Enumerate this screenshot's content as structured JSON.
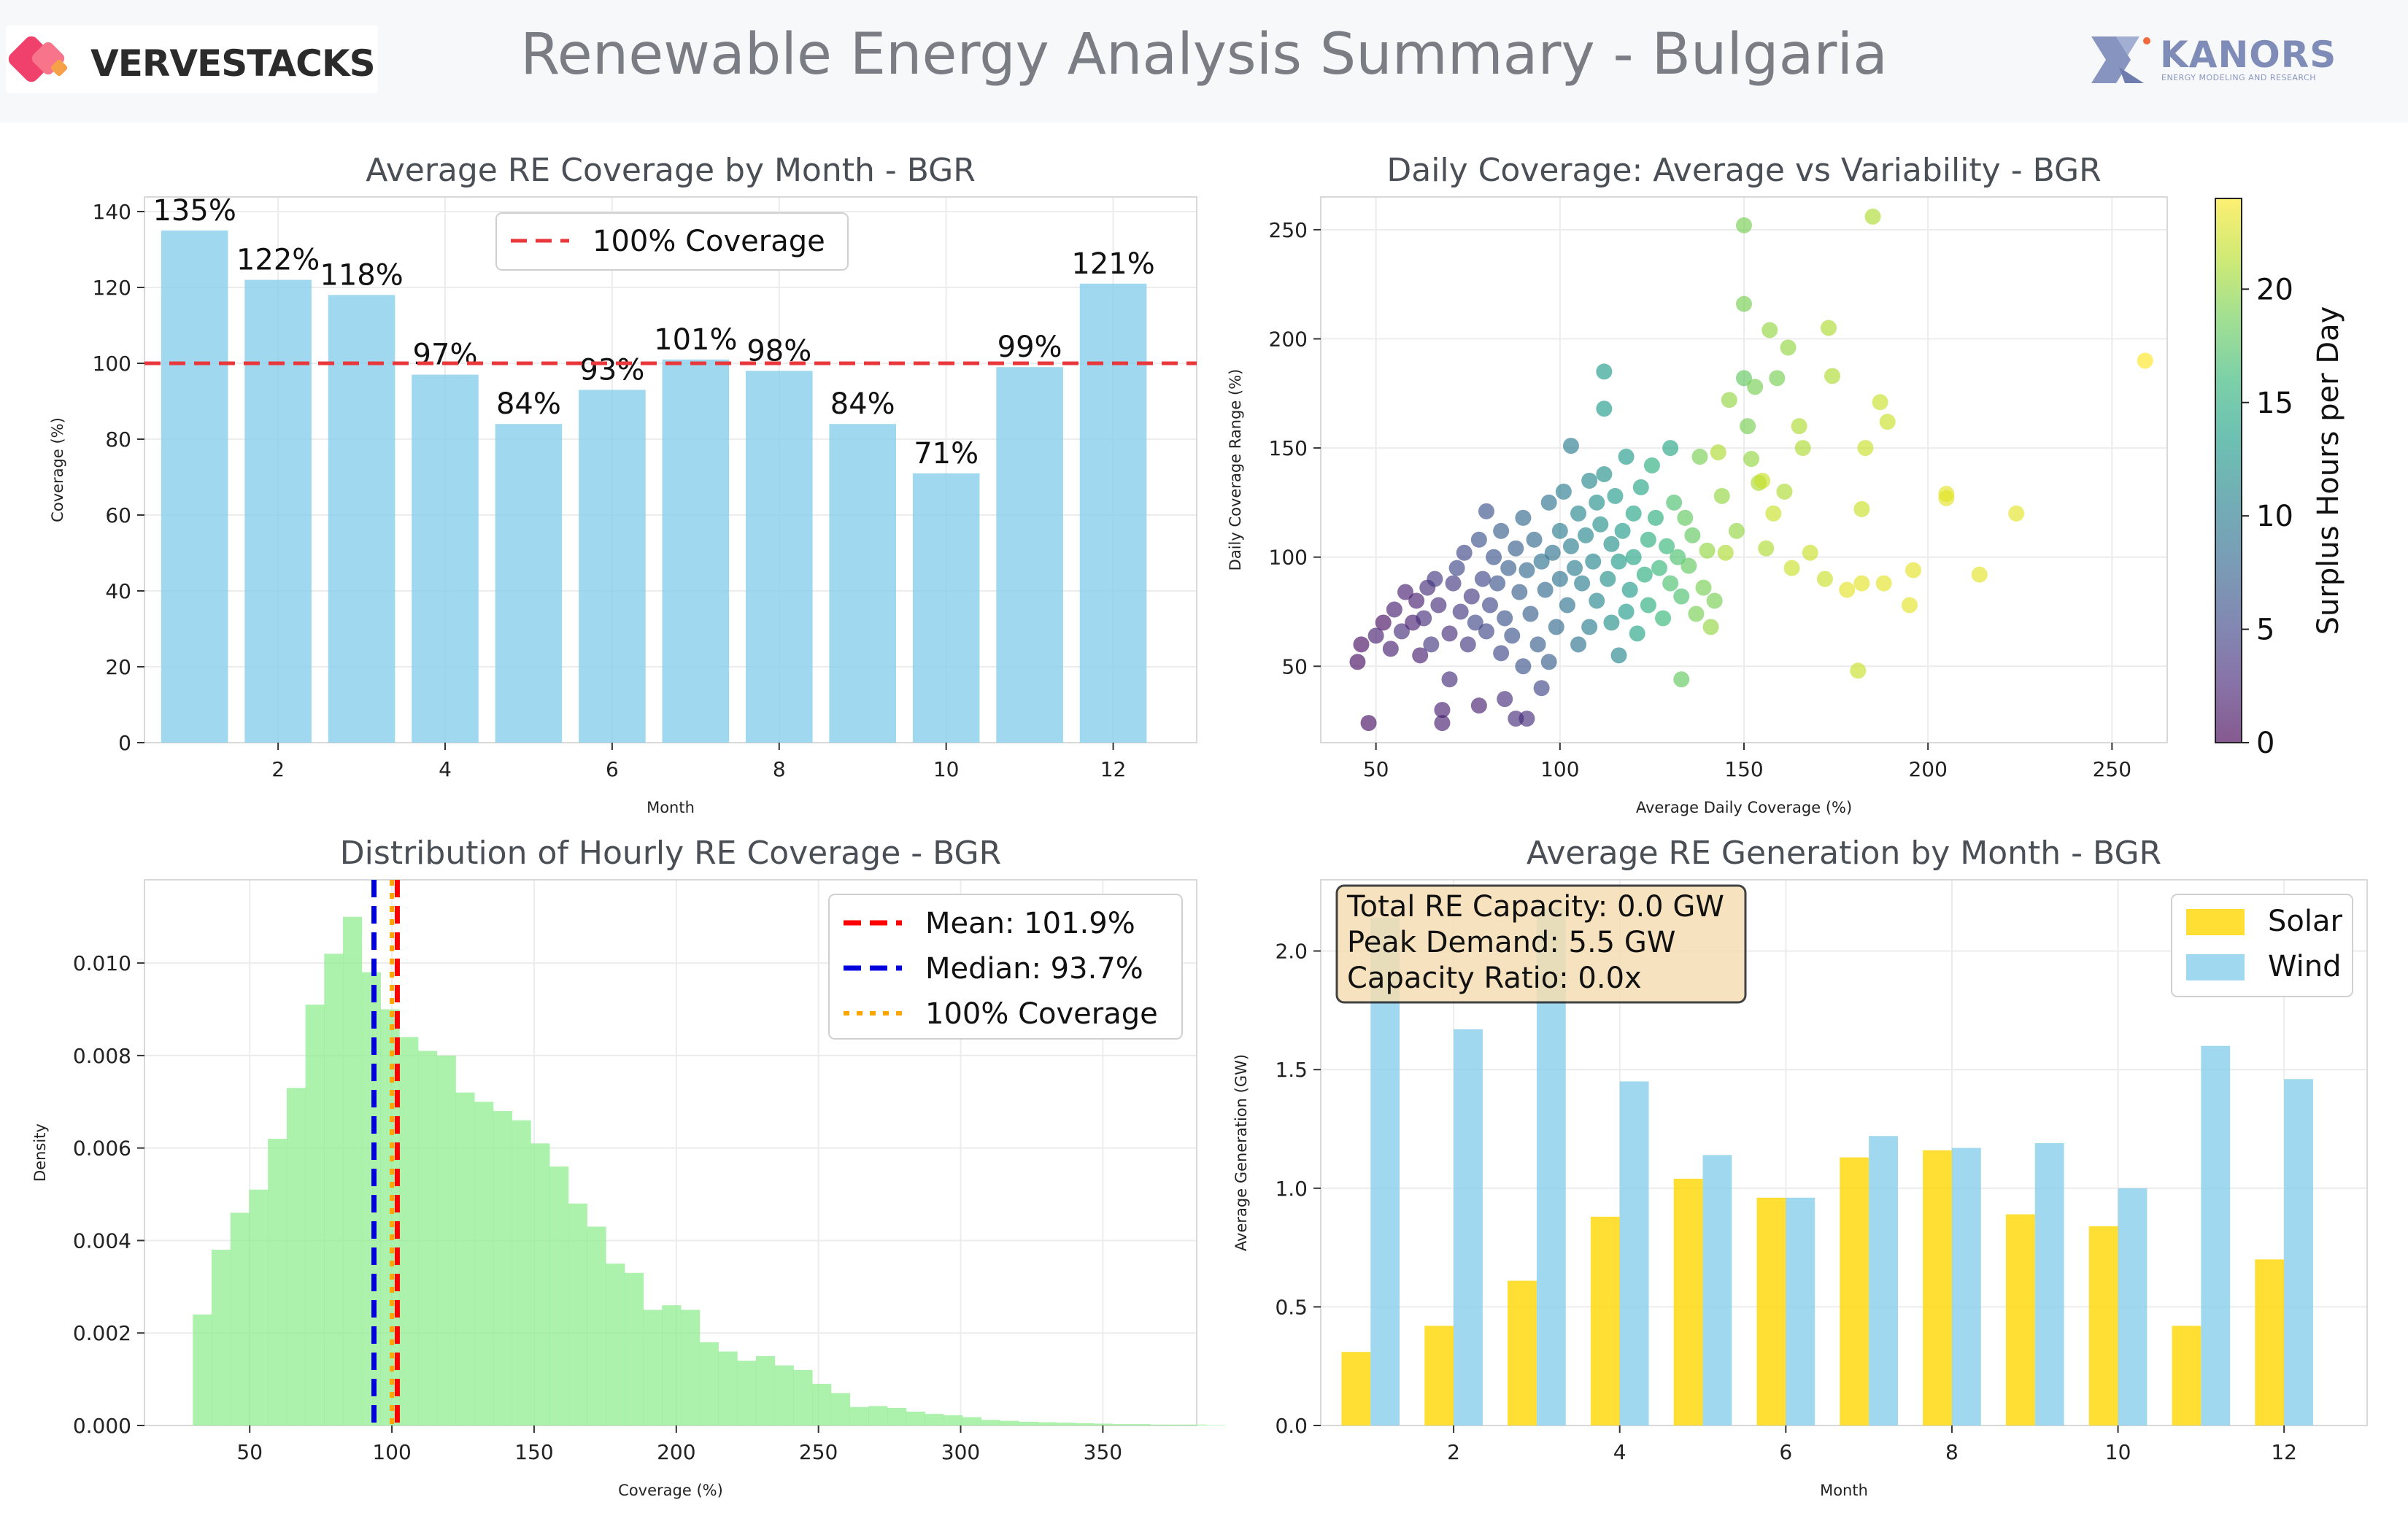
{
  "header": {
    "title": "Renewable Energy Analysis Summary - Bulgaria",
    "logo_left": "VERVESTACKS",
    "logo_right": "KANORS",
    "logo_right_sub": "ENERGY MODELING AND RESEARCH"
  },
  "colors": {
    "bar_blue": "#87ceeb",
    "bar_green": "#90ee90",
    "solar": "#ffd700",
    "wind": "#87ceeb",
    "ref_red": "#e8383b",
    "median_blue": "#0000dd",
    "coverage_orange": "#ffa500",
    "annotation_bg": "#f5deb3"
  },
  "chart_data": [
    {
      "type": "bar",
      "title": "Average RE Coverage by Month - BGR",
      "xlabel": "Month",
      "ylabel": "Coverage (%)",
      "x": [
        1,
        2,
        3,
        4,
        5,
        6,
        7,
        8,
        9,
        10,
        11,
        12
      ],
      "values": [
        135,
        122,
        118,
        97,
        84,
        93,
        101,
        98,
        84,
        71,
        99,
        121
      ],
      "data_labels": [
        "135%",
        "122%",
        "118%",
        "97%",
        "84%",
        "93%",
        "101%",
        "98%",
        "84%",
        "71%",
        "99%",
        "121%"
      ],
      "xticks": [
        "2",
        "4",
        "6",
        "8",
        "10",
        "12"
      ],
      "yticks": [
        "0",
        "20",
        "40",
        "60",
        "80",
        "100",
        "120",
        "140"
      ],
      "ylim": [
        0,
        140
      ],
      "reference_line": {
        "y": 100,
        "label": "100% Coverage"
      },
      "legend": "top-center",
      "grid": true
    },
    {
      "type": "scatter",
      "title": "Daily Coverage: Average vs Variability - BGR",
      "xlabel": "Average Daily Coverage (%)",
      "ylabel": "Daily Coverage Range (%)",
      "xticks": [
        "50",
        "100",
        "150",
        "200",
        "250"
      ],
      "yticks": [
        "50",
        "100",
        "150",
        "200",
        "250"
      ],
      "xlim": [
        35,
        265
      ],
      "ylim": [
        15,
        265
      ],
      "colorbar": {
        "label": "Surplus Hours per Day",
        "range": [
          0,
          24
        ],
        "ticks": [
          "0",
          "5",
          "10",
          "15",
          "20"
        ],
        "colormap": "viridis"
      },
      "points": [
        [
          45,
          52,
          1
        ],
        [
          46,
          60,
          1
        ],
        [
          48,
          24,
          1
        ],
        [
          50,
          64,
          2
        ],
        [
          52,
          70,
          1
        ],
        [
          54,
          58,
          2
        ],
        [
          55,
          76,
          2
        ],
        [
          57,
          66,
          3
        ],
        [
          58,
          84,
          2
        ],
        [
          60,
          70,
          2
        ],
        [
          61,
          80,
          2
        ],
        [
          62,
          55,
          2
        ],
        [
          63,
          72,
          3
        ],
        [
          64,
          86,
          3
        ],
        [
          65,
          60,
          4
        ],
        [
          66,
          90,
          4
        ],
        [
          67,
          78,
          3
        ],
        [
          68,
          30,
          2
        ],
        [
          68,
          24,
          2
        ],
        [
          70,
          44,
          3
        ],
        [
          70,
          65,
          3
        ],
        [
          71,
          88,
          4
        ],
        [
          72,
          95,
          5
        ],
        [
          73,
          75,
          4
        ],
        [
          74,
          102,
          5
        ],
        [
          75,
          60,
          4
        ],
        [
          76,
          82,
          4
        ],
        [
          77,
          70,
          5
        ],
        [
          78,
          32,
          2
        ],
        [
          78,
          108,
          6
        ],
        [
          79,
          90,
          5
        ],
        [
          80,
          66,
          5
        ],
        [
          80,
          121,
          6
        ],
        [
          81,
          78,
          5
        ],
        [
          82,
          100,
          6
        ],
        [
          83,
          88,
          6
        ],
        [
          84,
          56,
          5
        ],
        [
          84,
          112,
          7
        ],
        [
          85,
          72,
          6
        ],
        [
          85,
          35,
          3
        ],
        [
          86,
          95,
          7
        ],
        [
          87,
          64,
          6
        ],
        [
          88,
          104,
          7
        ],
        [
          88,
          26,
          3
        ],
        [
          89,
          84,
          7
        ],
        [
          90,
          118,
          8
        ],
        [
          90,
          50,
          6
        ],
        [
          91,
          94,
          8
        ],
        [
          91,
          26,
          3
        ],
        [
          92,
          74,
          7
        ],
        [
          93,
          108,
          8
        ],
        [
          94,
          60,
          7
        ],
        [
          95,
          98,
          9
        ],
        [
          95,
          40,
          5
        ],
        [
          96,
          85,
          8
        ],
        [
          97,
          125,
          9
        ],
        [
          97,
          52,
          7
        ],
        [
          98,
          102,
          9
        ],
        [
          99,
          68,
          8
        ],
        [
          100,
          112,
          10
        ],
        [
          100,
          90,
          9
        ],
        [
          101,
          130,
          10
        ],
        [
          102,
          78,
          9
        ],
        [
          103,
          105,
          10
        ],
        [
          103,
          151,
          10
        ],
        [
          104,
          95,
          10
        ],
        [
          105,
          120,
          11
        ],
        [
          105,
          60,
          9
        ],
        [
          106,
          88,
          10
        ],
        [
          107,
          110,
          11
        ],
        [
          108,
          135,
          11
        ],
        [
          108,
          68,
          10
        ],
        [
          109,
          98,
          11
        ],
        [
          110,
          125,
          12
        ],
        [
          110,
          80,
          11
        ],
        [
          111,
          115,
          12
        ],
        [
          112,
          185,
          13
        ],
        [
          112,
          168,
          13
        ],
        [
          112,
          138,
          12
        ],
        [
          113,
          90,
          12
        ],
        [
          114,
          70,
          12
        ],
        [
          114,
          106,
          12
        ],
        [
          115,
          128,
          13
        ],
        [
          116,
          55,
          11
        ],
        [
          116,
          98,
          13
        ],
        [
          117,
          112,
          13
        ],
        [
          118,
          75,
          13
        ],
        [
          118,
          146,
          13
        ],
        [
          119,
          85,
          13
        ],
        [
          120,
          120,
          14
        ],
        [
          120,
          100,
          14
        ],
        [
          121,
          65,
          14
        ],
        [
          122,
          132,
          14
        ],
        [
          123,
          92,
          15
        ],
        [
          124,
          108,
          15
        ],
        [
          124,
          78,
          15
        ],
        [
          125,
          142,
          15
        ],
        [
          126,
          118,
          15
        ],
        [
          127,
          95,
          16
        ],
        [
          128,
          72,
          16
        ],
        [
          129,
          105,
          16
        ],
        [
          130,
          88,
          17
        ],
        [
          130,
          150,
          14
        ],
        [
          131,
          125,
          17
        ],
        [
          132,
          100,
          17
        ],
        [
          133,
          44,
          18
        ],
        [
          133,
          82,
          17
        ],
        [
          134,
          118,
          18
        ],
        [
          135,
          96,
          18
        ],
        [
          136,
          110,
          18
        ],
        [
          137,
          74,
          19
        ],
        [
          138,
          146,
          19
        ],
        [
          139,
          86,
          19
        ],
        [
          140,
          103,
          20
        ],
        [
          141,
          68,
          20
        ],
        [
          142,
          80,
          19
        ],
        [
          143,
          148,
          21
        ],
        [
          144,
          128,
          20
        ],
        [
          145,
          102,
          21
        ],
        [
          146,
          172,
          20
        ],
        [
          148,
          112,
          20
        ],
        [
          150,
          252,
          19
        ],
        [
          150,
          216,
          19
        ],
        [
          150,
          182,
          18
        ],
        [
          151,
          160,
          19
        ],
        [
          152,
          145,
          20
        ],
        [
          153,
          178,
          19
        ],
        [
          154,
          134,
          21
        ],
        [
          155,
          135,
          22
        ],
        [
          156,
          104,
          21
        ],
        [
          157,
          204,
          20
        ],
        [
          158,
          120,
          22
        ],
        [
          159,
          182,
          19
        ],
        [
          161,
          130,
          21
        ],
        [
          162,
          196,
          20
        ],
        [
          163,
          95,
          22
        ],
        [
          165,
          160,
          21
        ],
        [
          166,
          150,
          21
        ],
        [
          168,
          102,
          22
        ],
        [
          172,
          90,
          22
        ],
        [
          173,
          205,
          21
        ],
        [
          174,
          183,
          21
        ],
        [
          178,
          85,
          23
        ],
        [
          181,
          48,
          22
        ],
        [
          182,
          122,
          22
        ],
        [
          182,
          88,
          23
        ],
        [
          183,
          150,
          22
        ],
        [
          185,
          256,
          21
        ],
        [
          187,
          171,
          22
        ],
        [
          188,
          88,
          23
        ],
        [
          189,
          162,
          22
        ],
        [
          195,
          78,
          23
        ],
        [
          196,
          94,
          23
        ],
        [
          205,
          127,
          23
        ],
        [
          205,
          129,
          23
        ],
        [
          214,
          92,
          23
        ],
        [
          224,
          120,
          23
        ],
        [
          259,
          190,
          24
        ]
      ]
    },
    {
      "type": "bar",
      "subtype": "histogram",
      "title": "Distribution of Hourly RE Coverage - BGR",
      "xlabel": "Coverage (%)",
      "ylabel": "Density",
      "xticks": [
        "50",
        "100",
        "150",
        "200",
        "250",
        "300",
        "350"
      ],
      "yticks": [
        "0.000",
        "0.002",
        "0.004",
        "0.006",
        "0.008",
        "0.010"
      ],
      "xlim": [
        13,
        383
      ],
      "ylim": [
        0,
        0.0118
      ],
      "bin_start": 30,
      "bin_width": 6.6,
      "values": [
        0.0024,
        0.0038,
        0.0046,
        0.0051,
        0.0062,
        0.0073,
        0.0091,
        0.0102,
        0.011,
        0.0098,
        0.009,
        0.0084,
        0.0081,
        0.008,
        0.0072,
        0.007,
        0.0068,
        0.0066,
        0.0061,
        0.0056,
        0.0048,
        0.0043,
        0.0035,
        0.0033,
        0.0025,
        0.0026,
        0.0025,
        0.0018,
        0.0016,
        0.0014,
        0.0015,
        0.0013,
        0.0012,
        0.0009,
        0.0007,
        0.0004,
        0.00042,
        0.00038,
        0.0003,
        0.00025,
        0.00022,
        0.00018,
        0.00012,
        0.0001,
        8e-05,
        7e-05,
        6e-05,
        5e-05,
        4e-05,
        3e-05,
        3e-05,
        2e-05,
        2e-05,
        2e-05,
        1e-05
      ],
      "lines": [
        {
          "x": 101.9,
          "label": "Mean: 101.9%",
          "style": "dashed",
          "color": "#ff0000"
        },
        {
          "x": 93.7,
          "label": "Median: 93.7%",
          "style": "dashed",
          "color": "#0000dd"
        },
        {
          "x": 100,
          "label": "100% Coverage",
          "style": "dotted",
          "color": "#ffa500"
        }
      ],
      "legend": "top-right",
      "grid": true
    },
    {
      "type": "bar",
      "subtype": "grouped",
      "title": "Average RE Generation by Month - BGR",
      "xlabel": "Month",
      "ylabel": "Average Generation (GW)",
      "x": [
        1,
        2,
        3,
        4,
        5,
        6,
        7,
        8,
        9,
        10,
        11,
        12
      ],
      "xticks": [
        "2",
        "4",
        "6",
        "8",
        "10",
        "12"
      ],
      "yticks": [
        "0.0",
        "0.5",
        "1.0",
        "1.5",
        "2.0"
      ],
      "ylim": [
        0,
        2.3
      ],
      "series": [
        {
          "name": "Solar",
          "values": [
            0.31,
            0.42,
            0.61,
            0.88,
            1.04,
            0.96,
            1.13,
            1.16,
            0.89,
            0.84,
            0.42,
            0.7
          ]
        },
        {
          "name": "Wind",
          "values": [
            2.14,
            1.67,
            2.18,
            1.45,
            1.14,
            0.96,
            1.22,
            1.17,
            1.19,
            1.0,
            1.6,
            1.46
          ]
        }
      ],
      "annotation": [
        "Total RE Capacity: 0.0 GW",
        "Peak Demand: 5.5 GW",
        "Capacity Ratio: 0.0x"
      ],
      "legend": "top-right",
      "grid": true
    }
  ]
}
